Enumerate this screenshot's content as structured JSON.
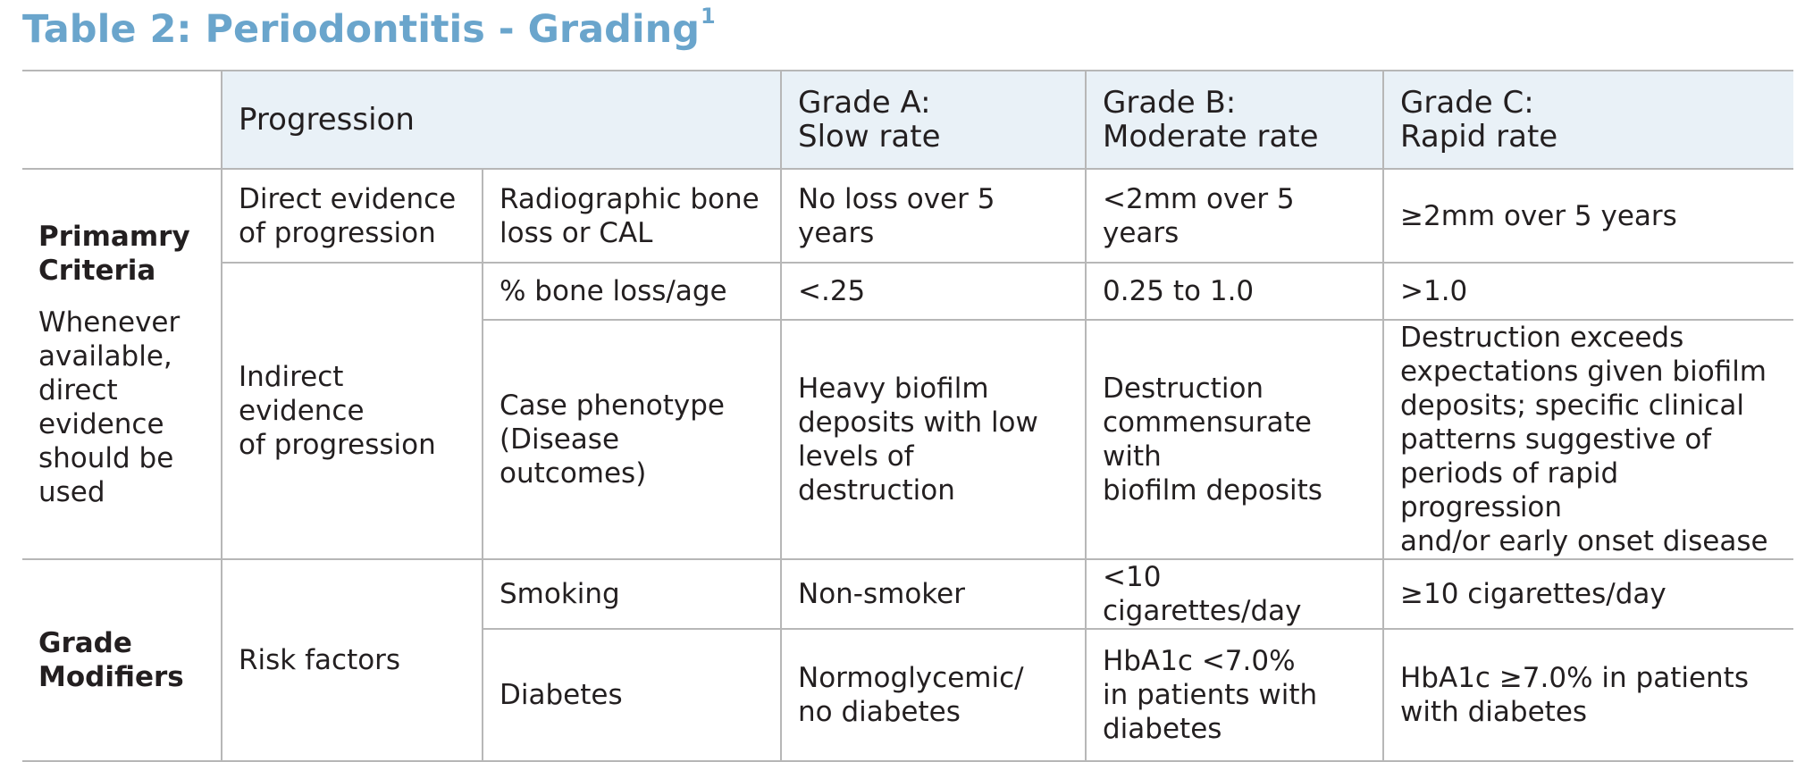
{
  "title": "Table 2: Periodontitis - Grading",
  "title_sup": "1",
  "header": {
    "progression": "Progression",
    "grade_a": [
      "Grade A:",
      "Slow rate"
    ],
    "grade_b": [
      "Grade B:",
      "Moderate rate"
    ],
    "grade_c": [
      "Grade C:",
      "Rapid rate"
    ]
  },
  "primary": {
    "label": [
      "Primamry",
      "Criteria"
    ],
    "note": [
      "Whenever",
      "available,",
      "direct",
      "evidence",
      "should be",
      "used"
    ],
    "direct": {
      "evidence": [
        "Direct evidence",
        "of progression"
      ],
      "measure": [
        "Radiographic bone",
        "loss or CAL"
      ],
      "a": "No loss over 5 years",
      "b": "<2mm over 5 years",
      "c": "≥2mm over 5 years"
    },
    "indirect": {
      "evidence": [
        "Indirect evidence",
        "of progression"
      ],
      "bone": {
        "measure": "% bone loss/age",
        "a": "<.25",
        "b": "0.25 to 1.0",
        "c": ">1.0"
      },
      "phenotype": {
        "measure": [
          "Case phenotype",
          "(Disease outcomes)"
        ],
        "a": [
          "Heavy biofilm",
          "deposits with low",
          "levels of destruction"
        ],
        "b": [
          "Destruction",
          "commensurate with",
          "biofilm deposits"
        ],
        "c": [
          "Destruction exceeds",
          "expectations given biofilm",
          "deposits; specific clinical",
          "patterns suggestive of",
          "periods of rapid progression",
          "and/or early onset disease"
        ]
      }
    }
  },
  "modifiers": {
    "label": [
      "Grade",
      "Modifiers"
    ],
    "risk": "Risk factors",
    "smoking": {
      "measure": "Smoking",
      "a": "Non-smoker",
      "b": "<10 cigarettes/day",
      "c": "≥10 cigarettes/day"
    },
    "diabetes": {
      "measure": "Diabetes",
      "a": [
        "Normoglycemic/",
        "no diabetes"
      ],
      "b": [
        "HbA1c <7.0%",
        "in patients with",
        "diabetes"
      ],
      "c": [
        "HbA1c ≥7.0% in patients",
        "with diabetes"
      ]
    }
  }
}
